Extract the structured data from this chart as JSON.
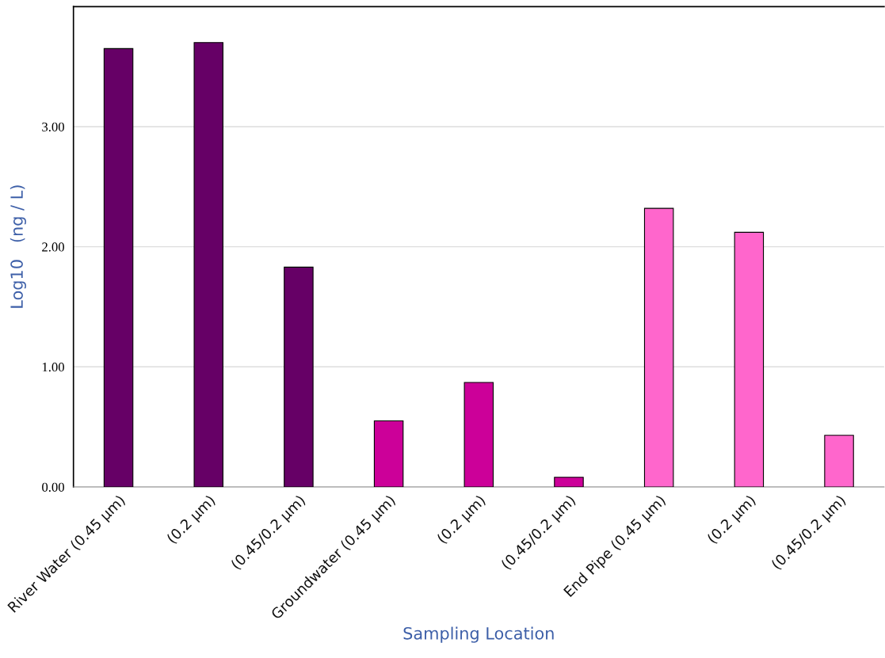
{
  "chart_data": {
    "type": "bar",
    "xlabel": "Sampling Location",
    "ylabel": "Log10   (ng / L)",
    "categories": [
      "River Water (0.45 µm)",
      "(0.2 µm)",
      "(0.45/0.2 µm)",
      "Groundwater (0.45 µm)",
      "(0.2 µm)",
      "(0.45/0.2 µm)",
      "End Pipe (0.45 µm)",
      "(0.2 µm)",
      "(0.45/0.2 µm)"
    ],
    "values": [
      3.65,
      3.7,
      1.83,
      0.55,
      0.87,
      0.08,
      2.32,
      2.12,
      0.43
    ],
    "colors": [
      "#660066",
      "#660066",
      "#660066",
      "#cc0099",
      "#cc0099",
      "#cc0099",
      "#ff66cc",
      "#ff66cc",
      "#ff66cc"
    ],
    "ylim": [
      0,
      4.0
    ],
    "yticks": [
      {
        "value": 0,
        "label": "0.00"
      },
      {
        "value": 1,
        "label": "1.00"
      },
      {
        "value": 2,
        "label": "2.00"
      },
      {
        "value": 3,
        "label": "3.00"
      }
    ],
    "grid": "y",
    "legend": false
  }
}
